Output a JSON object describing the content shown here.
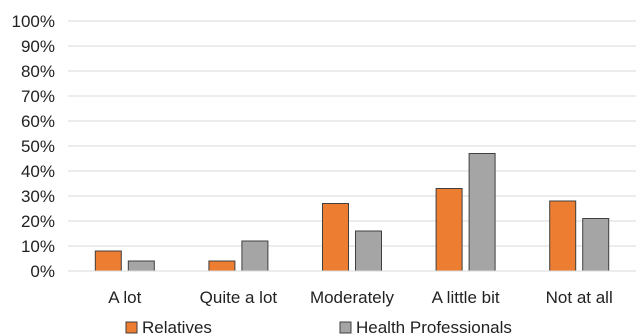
{
  "chart_data": {
    "type": "bar",
    "categories": [
      "A lot",
      "Quite a lot",
      "Moderately",
      "A little bit",
      "Not at all"
    ],
    "series": [
      {
        "name": "Relatives",
        "values": [
          8,
          4,
          27,
          33,
          28
        ],
        "color": "#ED7D31"
      },
      {
        "name": "Health Professionals",
        "values": [
          4,
          12,
          16,
          47,
          21
        ],
        "color": "#A5A5A5"
      }
    ],
    "ylim": [
      0,
      100
    ],
    "yticks": [
      "0%",
      "10%",
      "20%",
      "30%",
      "40%",
      "50%",
      "60%",
      "70%",
      "80%",
      "90%",
      "100%"
    ],
    "y_unit": "%",
    "grid": true,
    "legend_position": "bottom",
    "title": "",
    "xlabel": "",
    "ylabel": ""
  }
}
